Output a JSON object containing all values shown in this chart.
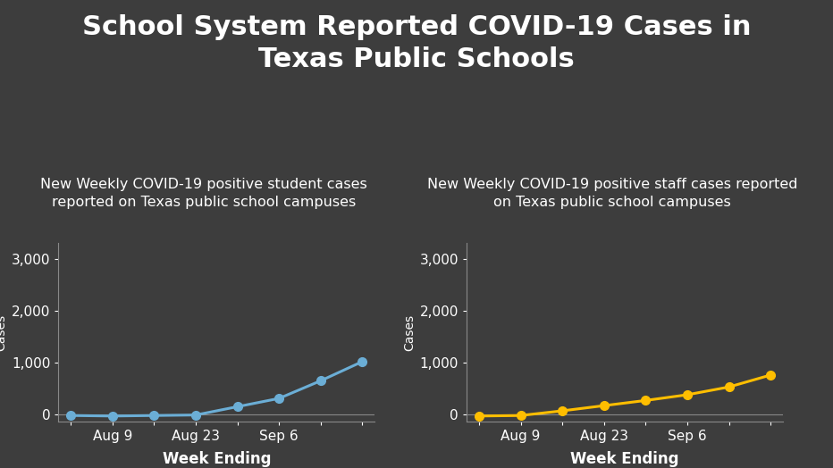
{
  "title": "School System Reported COVID-19 Cases in\nTexas Public Schools",
  "title_fontsize": 22,
  "bg_color": "#3d3d3d",
  "text_color": "#ffffff",
  "student_subtitle": "New Weekly COVID-19 positive student cases\nreported on Texas public school campuses",
  "staff_subtitle": "New Weekly COVID-19 positive staff cases reported\non Texas public school campuses",
  "subtitle_fontsize": 11.5,
  "xlabel": "Week Ending",
  "ylabel": "Cases",
  "xlabel_fontsize": 12,
  "ylabel_fontsize": 10,
  "student_x": [
    0,
    1,
    2,
    3,
    4,
    5,
    6,
    7
  ],
  "student_y": [
    -20,
    -30,
    -20,
    -10,
    150,
    310,
    650,
    1020
  ],
  "staff_x": [
    0,
    1,
    2,
    3,
    4,
    5,
    6,
    7
  ],
  "staff_y": [
    -30,
    -20,
    70,
    170,
    270,
    380,
    530,
    760
  ],
  "student_color": "#6baed6",
  "staff_color": "#ffbe00",
  "ylim": [
    -130,
    3300
  ],
  "yticks": [
    0,
    1000,
    2000,
    3000
  ],
  "xtick_labels": [
    "",
    "Aug 9",
    "",
    "Aug 23",
    "",
    "Sep 6",
    "",
    ""
  ],
  "axis_color": "#888888",
  "tick_fontsize": 11,
  "marker_size": 7,
  "line_width": 2.2
}
